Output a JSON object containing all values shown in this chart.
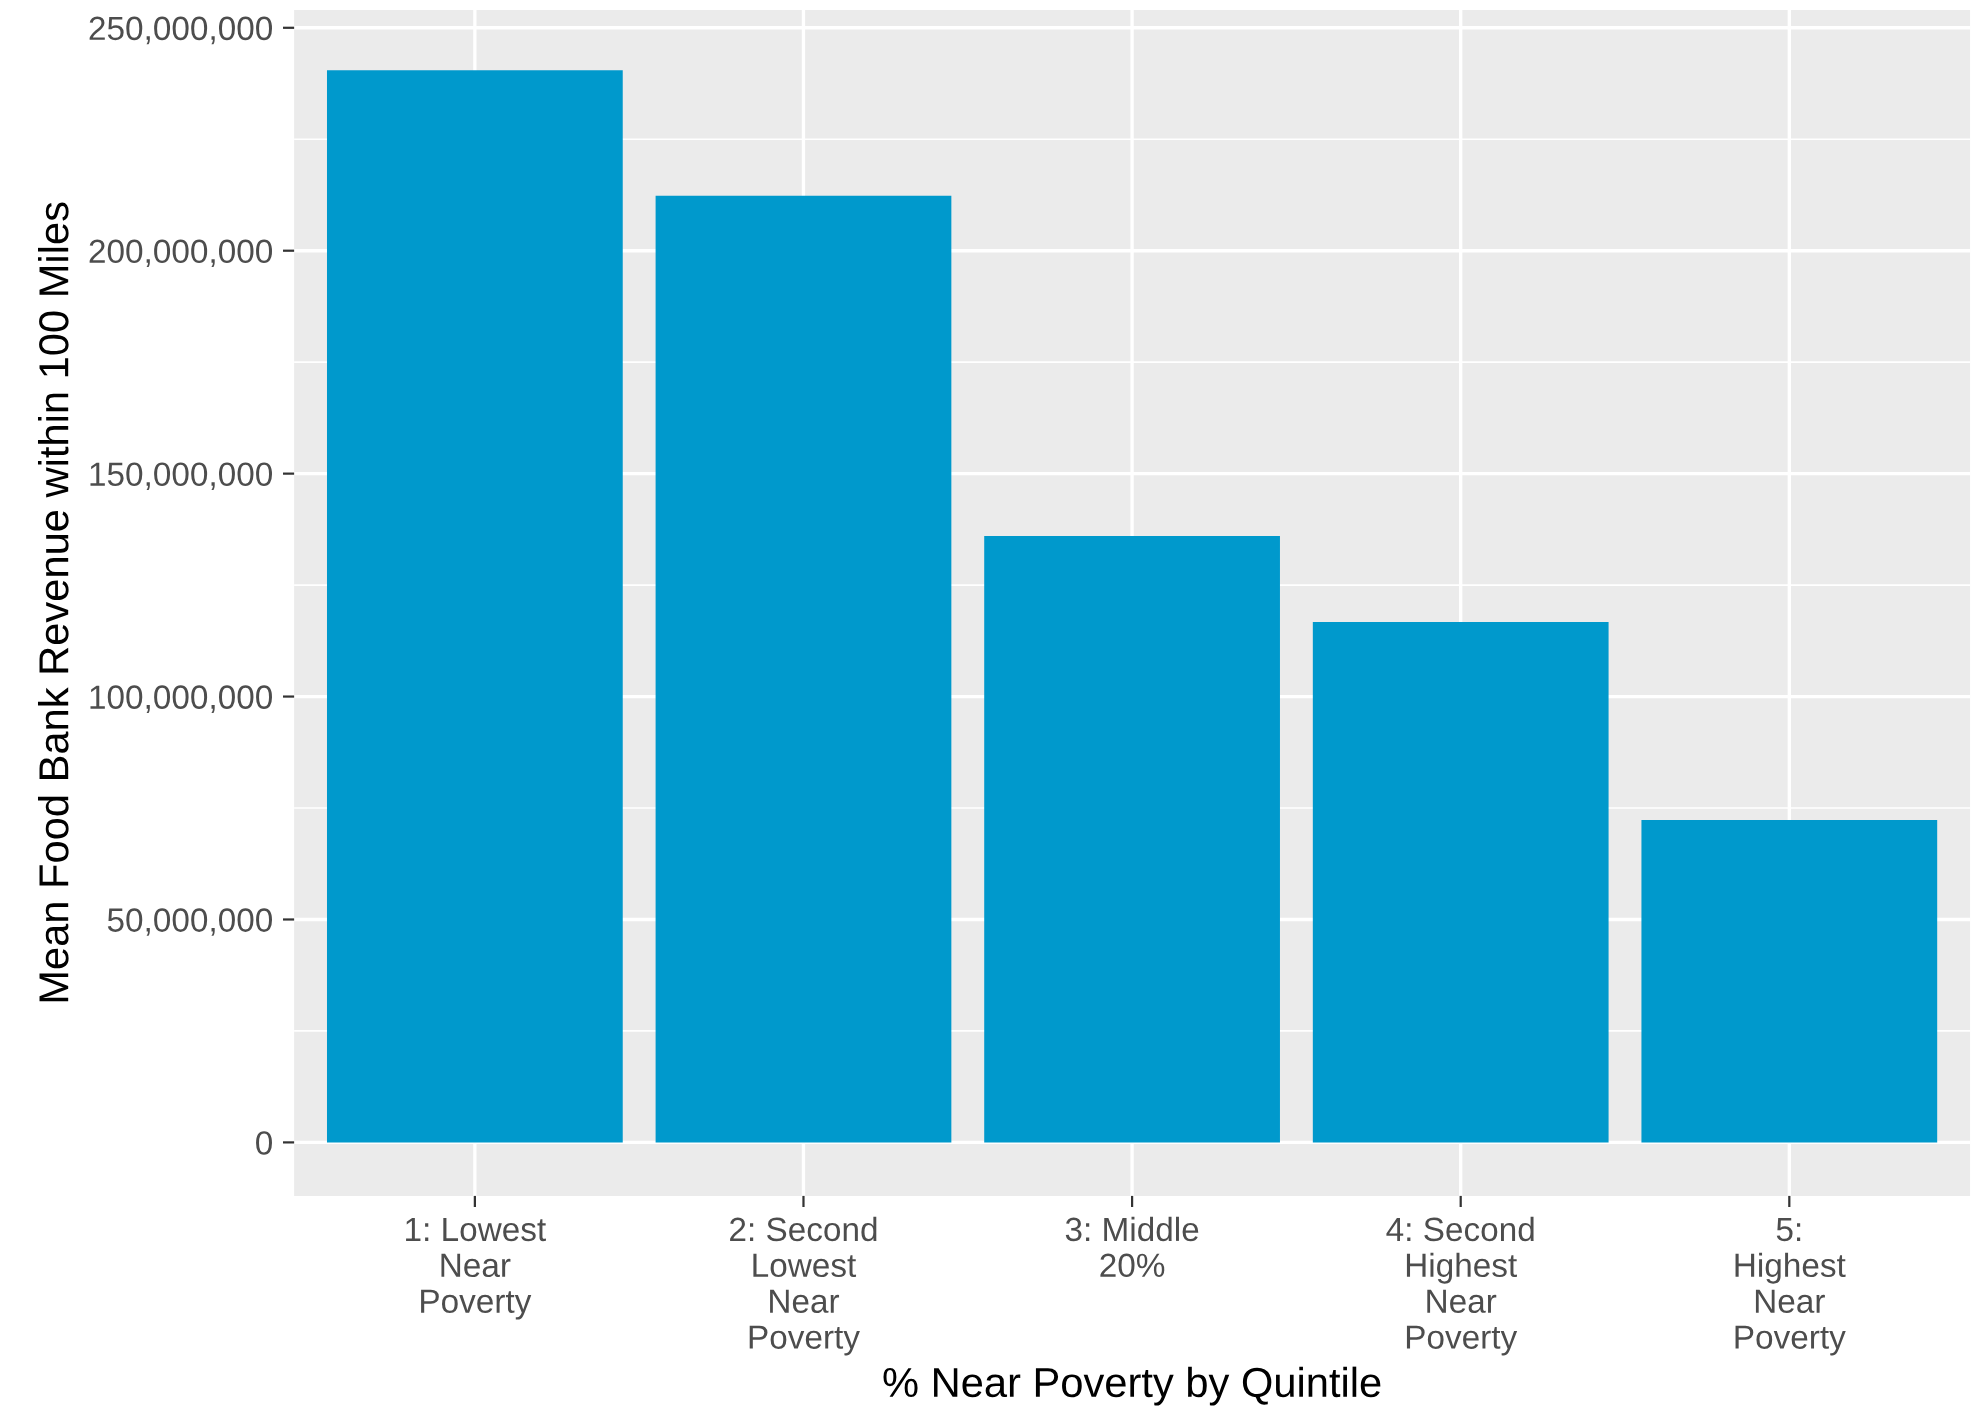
{
  "chart_data": {
    "type": "bar",
    "xlabel": "% Near Poverty by Quintile",
    "ylabel": "Mean Food Bank Revenue within 100 Miles",
    "categories": [
      "1: Lowest\nNear\nPoverty",
      "2: Second\nLowest\nNear\nPoverty",
      "3: Middle\n20%",
      "4: Second\nHighest\nNear\nPoverty",
      "5:\nHighest\nNear\nPoverty"
    ],
    "values": [
      240500000,
      212300000,
      136000000,
      116700000,
      72300000
    ],
    "color": "#0099cc",
    "ylim": [
      -12000000,
      254000000
    ],
    "yticks": [
      0,
      {
        "value": 50000000,
        "label": "50,000,000"
      },
      {
        "value": 100000000,
        "label": "100,000,000"
      },
      {
        "value": 150000000,
        "label": "150,000,000"
      },
      {
        "value": 200000000,
        "label": "200,000,000"
      },
      {
        "value": 250000000,
        "label": "250,000,000"
      }
    ],
    "grid": true,
    "legend": false
  }
}
